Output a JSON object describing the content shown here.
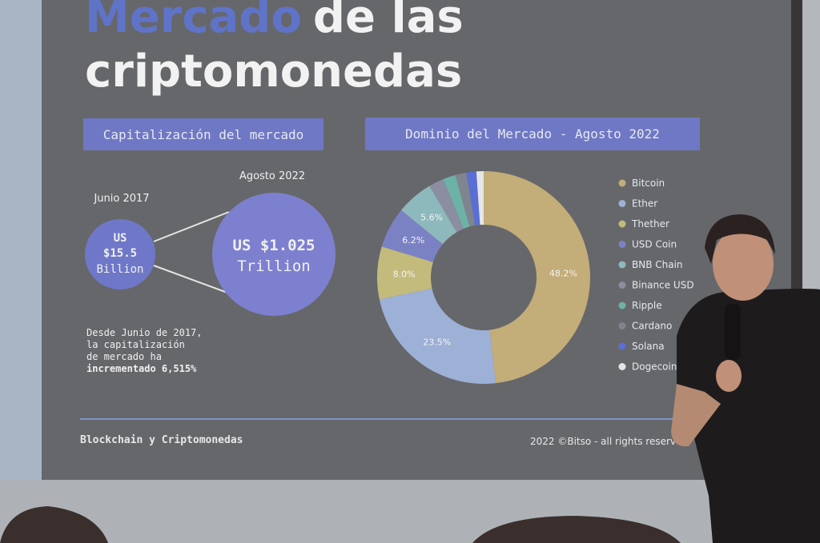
{
  "slide": {
    "title_highlight": "Mercado",
    "title_rest": "de las",
    "title_line2": "criptomonedas",
    "left_header": "Capitalización del mercado",
    "date_before": "Junio 2017",
    "before_line1": "US",
    "before_line2": "$15.5",
    "before_line3": "Billion",
    "date_after": "Agosto 2022",
    "after_line1": "US $1.025",
    "after_line2": "Trillion",
    "note": [
      "Desde Junio de 2017,",
      "la capitalización",
      "de mercado ha",
      "incrementado 6,515%"
    ],
    "footer_left": "Blockchain y Criptomonedas",
    "footer_right": "2022 ©Bitso - all rights reserv"
  },
  "chart_data": {
    "type": "pie",
    "title": "Dominio del Mercado - Agosto 2022",
    "donut": true,
    "categories": [
      "Bitcoin",
      "Ether",
      "Thether",
      "USD Coin",
      "BNB Chain",
      "Binance USD",
      "Ripple",
      "Cardano",
      "Solana",
      "Dogecoin"
    ],
    "values": [
      48.2,
      23.5,
      8.0,
      6.2,
      5.6,
      2.3,
      1.9,
      1.7,
      1.5,
      1.1
    ],
    "value_labels": [
      "48.2%",
      "23.5%",
      "8.0%",
      "6.2%",
      "5.6%",
      null,
      null,
      null,
      null,
      null
    ],
    "colors": [
      "#c3ad78",
      "#9db0d6",
      "#c2bb7c",
      "#7b82c4",
      "#8db8bc",
      "#8a8ea0",
      "#6db2a6",
      "#7f858f",
      "#5a6fd4",
      "#e6e6e6"
    ]
  }
}
